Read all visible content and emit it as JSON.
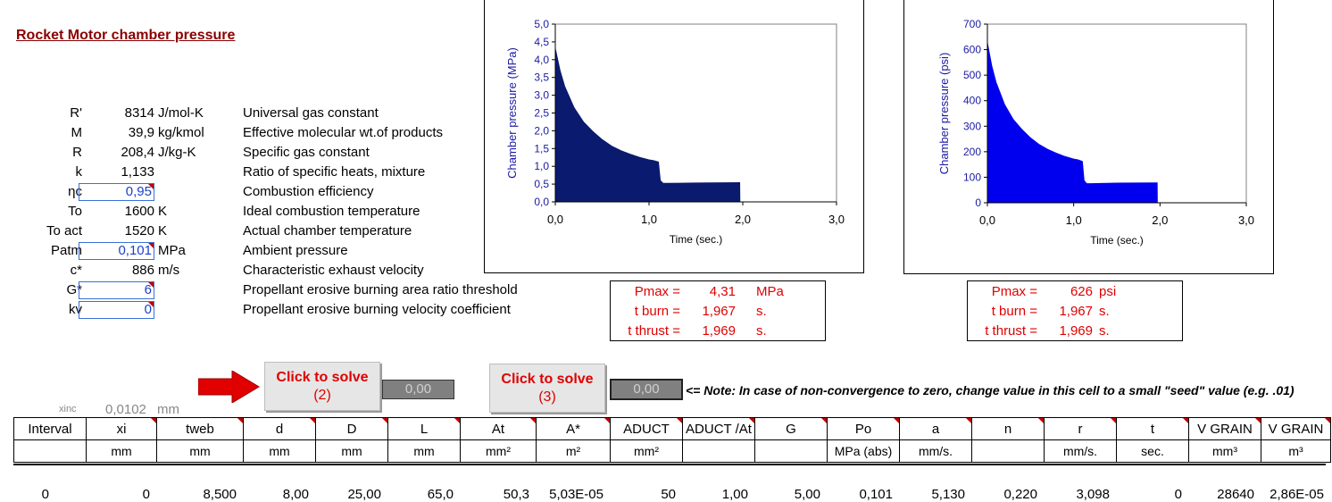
{
  "title": "Rocket Motor chamber pressure",
  "params": [
    {
      "sym": "R'",
      "val": "8314",
      "unit": "J/mol-K",
      "desc": "Universal gas constant",
      "input": false
    },
    {
      "sym": "M",
      "val": "39,9",
      "unit": "kg/kmol",
      "desc": "Effective molecular wt.of products",
      "input": false
    },
    {
      "sym": "R",
      "val": "208,4",
      "unit": "J/kg-K",
      "desc": "Specific gas constant",
      "input": false
    },
    {
      "sym": "k",
      "val": "1,133",
      "unit": "",
      "desc": "Ratio of specific heats, mixture",
      "input": false
    },
    {
      "sym": "ηc",
      "val": "0,95",
      "unit": "",
      "desc": "Combustion efficiency",
      "input": true
    },
    {
      "sym": "To",
      "val": "1600",
      "unit": "K",
      "desc": "Ideal combustion temperature",
      "input": false
    },
    {
      "sym": "To act",
      "val": "1520",
      "unit": "K",
      "desc": "Actual chamber temperature",
      "input": false
    },
    {
      "sym": "Patm",
      "val": "0,101",
      "unit": "MPa",
      "desc": "Ambient pressure",
      "input": true
    },
    {
      "sym": "c*",
      "val": "886",
      "unit": "m/s",
      "desc": "Characteristic exhaust velocity",
      "input": false
    },
    {
      "sym": "G*",
      "val": "6",
      "unit": "",
      "desc": "Propellant erosive burning area ratio threshold",
      "input": true
    },
    {
      "sym": "kv",
      "val": "0",
      "unit": "",
      "desc": "Propellant erosive burning velocity coefficient",
      "input": true
    }
  ],
  "results_mpa": {
    "pmax_label": "Pmax =",
    "pmax": "4,31",
    "pmax_unit": "MPa",
    "tburn_label": "t burn =",
    "tburn": "1,967",
    "tburn_unit": "s.",
    "tthrust_label": "t thrust =",
    "tthrust": "1,969",
    "tthrust_unit": "s."
  },
  "results_psi": {
    "pmax_label": "Pmax =",
    "pmax": "626",
    "pmax_unit": "psi",
    "tburn_label": "t burn =",
    "tburn": "1,967",
    "tburn_unit": "s.",
    "tthrust_label": "t thrust =",
    "tthrust": "1,969",
    "tthrust_unit": "s."
  },
  "buttons": [
    {
      "line1": "Click to solve",
      "line2": "(2)",
      "cell": "0,00"
    },
    {
      "line1": "Click to solve",
      "line2": "(3)",
      "cell": "0,00"
    }
  ],
  "note": "<= Note: In case of non-convergence to zero, change value in this cell to a small \"seed\" value (e.g. .01)",
  "xinc": {
    "label": "xinc",
    "value": "0,0102",
    "unit": "mm"
  },
  "columns": [
    {
      "h": "Interval",
      "u": ""
    },
    {
      "h": "xi",
      "u": "mm"
    },
    {
      "h": "tweb",
      "u": "mm"
    },
    {
      "h": "d",
      "u": "mm"
    },
    {
      "h": "D",
      "u": "mm"
    },
    {
      "h": "L",
      "u": "mm"
    },
    {
      "h": "At",
      "u": "mm²"
    },
    {
      "h": "A*",
      "u": "m²"
    },
    {
      "h": "ADUCT",
      "u": "mm²"
    },
    {
      "h": "ADUCT /At",
      "u": ""
    },
    {
      "h": "G",
      "u": ""
    },
    {
      "h": "Po",
      "u": "MPa (abs)"
    },
    {
      "h": "a",
      "u": "mm/s."
    },
    {
      "h": "n",
      "u": ""
    },
    {
      "h": "r",
      "u": "mm/s."
    },
    {
      "h": "t",
      "u": "sec."
    },
    {
      "h": "V GRAIN",
      "u": "mm³"
    },
    {
      "h": "V GRAIN",
      "u": "m³"
    }
  ],
  "first_row": [
    "0",
    "0",
    "8,500",
    "8,00",
    "25,00",
    "65,0",
    "50,3",
    "5,03E-05",
    "50",
    "1,00",
    "5,00",
    "0,101",
    "5,130",
    "0,220",
    "3,098",
    "0",
    "28640",
    "2,86E-05"
  ],
  "chart_data": [
    {
      "type": "area",
      "xlabel": "Time  (sec.)",
      "ylabel": "Chamber pressure  (MPa)",
      "xlim": [
        0,
        3
      ],
      "ylim": [
        0,
        5
      ],
      "xticks": [
        "0,0",
        "1,0",
        "2,0",
        "3,0"
      ],
      "yticks": [
        "0,0",
        "0,5",
        "1,0",
        "1,5",
        "2,0",
        "2,5",
        "3,0",
        "3,5",
        "4,0",
        "4,5",
        "5,0"
      ],
      "color": "#0a1a6e",
      "x": [
        0,
        0.05,
        0.1,
        0.2,
        0.3,
        0.4,
        0.5,
        0.6,
        0.7,
        0.8,
        0.9,
        1.0,
        1.05,
        1.1,
        1.12,
        1.15,
        1.2,
        1.5,
        1.967,
        1.969
      ],
      "y": [
        4.31,
        3.7,
        3.25,
        2.65,
        2.25,
        1.98,
        1.75,
        1.57,
        1.44,
        1.34,
        1.25,
        1.18,
        1.16,
        1.12,
        0.6,
        0.52,
        0.52,
        0.53,
        0.54,
        0
      ]
    },
    {
      "type": "area",
      "xlabel": "Time  (sec.)",
      "ylabel": "Chamber pressure  (psi)",
      "xlim": [
        0,
        3
      ],
      "ylim": [
        0,
        700
      ],
      "xticks": [
        "0,0",
        "1,0",
        "2,0",
        "3,0"
      ],
      "yticks": [
        "0",
        "100",
        "200",
        "300",
        "400",
        "500",
        "600",
        "700"
      ],
      "color": "#0000ee",
      "x": [
        0,
        0.05,
        0.1,
        0.2,
        0.3,
        0.4,
        0.5,
        0.6,
        0.7,
        0.8,
        0.9,
        1.0,
        1.05,
        1.1,
        1.12,
        1.15,
        1.2,
        1.5,
        1.967,
        1.969
      ],
      "y": [
        626,
        537,
        472,
        384,
        326,
        287,
        254,
        228,
        209,
        194,
        181,
        171,
        168,
        162,
        87,
        75,
        75,
        77,
        78,
        0
      ]
    }
  ],
  "colors": {
    "title": "#8b0000",
    "result": "#e00000",
    "input_border": "#3a6fd8",
    "arrow": "#e00000"
  }
}
